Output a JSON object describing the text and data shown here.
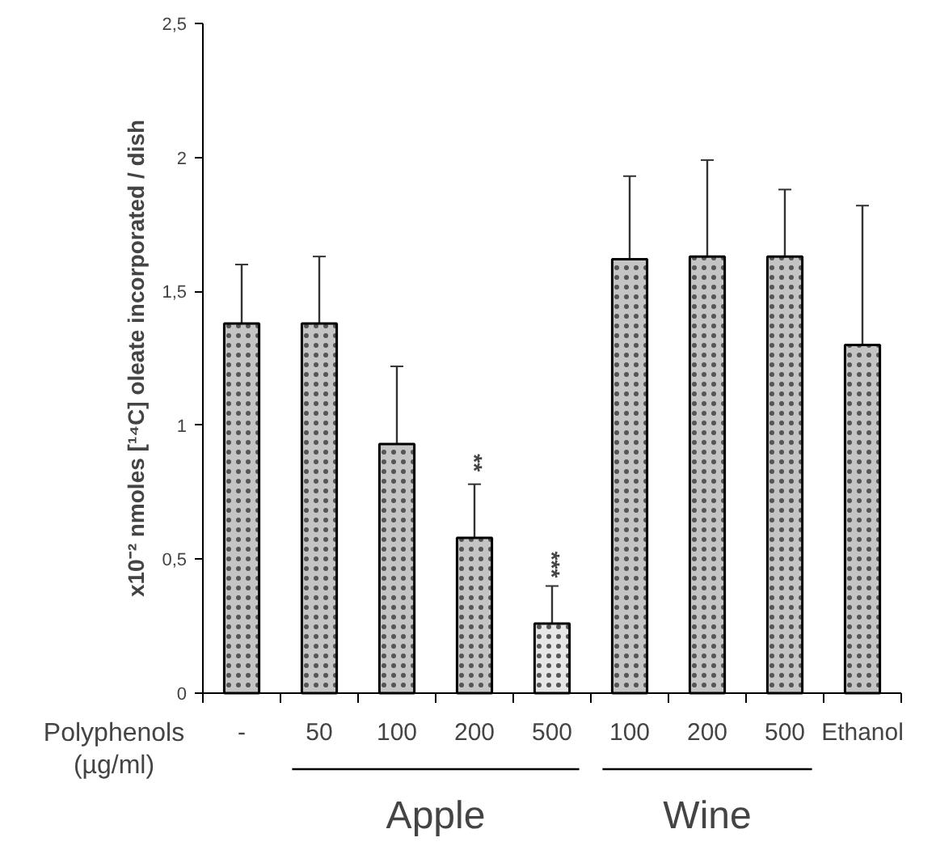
{
  "chart_data": {
    "type": "bar",
    "ylabel": "x10⁻² nmoles [¹⁴C] oleate incorporated / dish",
    "xlabel": "Polyphenols\n(µg/ml)",
    "categories": [
      "-",
      "50",
      "100",
      "200",
      "500",
      "100",
      "200",
      "500",
      "Ethanol"
    ],
    "values": [
      1.38,
      1.38,
      0.93,
      0.58,
      0.26,
      1.62,
      1.63,
      1.63,
      1.3
    ],
    "colors": [
      "#c4c4c4",
      "#c4c4c4",
      "#c4c4c4",
      "#c4c4c4",
      "#e6e6e6",
      "#c4c4c4",
      "#c4c4c4",
      "#c4c4c4",
      "#c4c4c4"
    ],
    "errors": [
      [
        1.16,
        1.6
      ],
      [
        1.12,
        1.63
      ],
      [
        0.62,
        1.22
      ],
      [
        0.37,
        0.78
      ],
      [
        0.11,
        0.4
      ],
      [
        1.29,
        1.93
      ],
      [
        1.35,
        1.99
      ],
      [
        1.45,
        1.88
      ],
      [
        0.78,
        1.82
      ]
    ],
    "ylim": [
      0,
      2.5
    ],
    "yticks": [
      0,
      {
        "value": 0.5,
        "label": "0,5"
      },
      1,
      {
        "value": 1.5,
        "label": "1,5"
      },
      2,
      {
        "value": 2.5,
        "label": "2,5"
      }
    ],
    "annotations": [
      "**",
      "***",
      "Apple",
      "Wine"
    ],
    "grid": false
  }
}
